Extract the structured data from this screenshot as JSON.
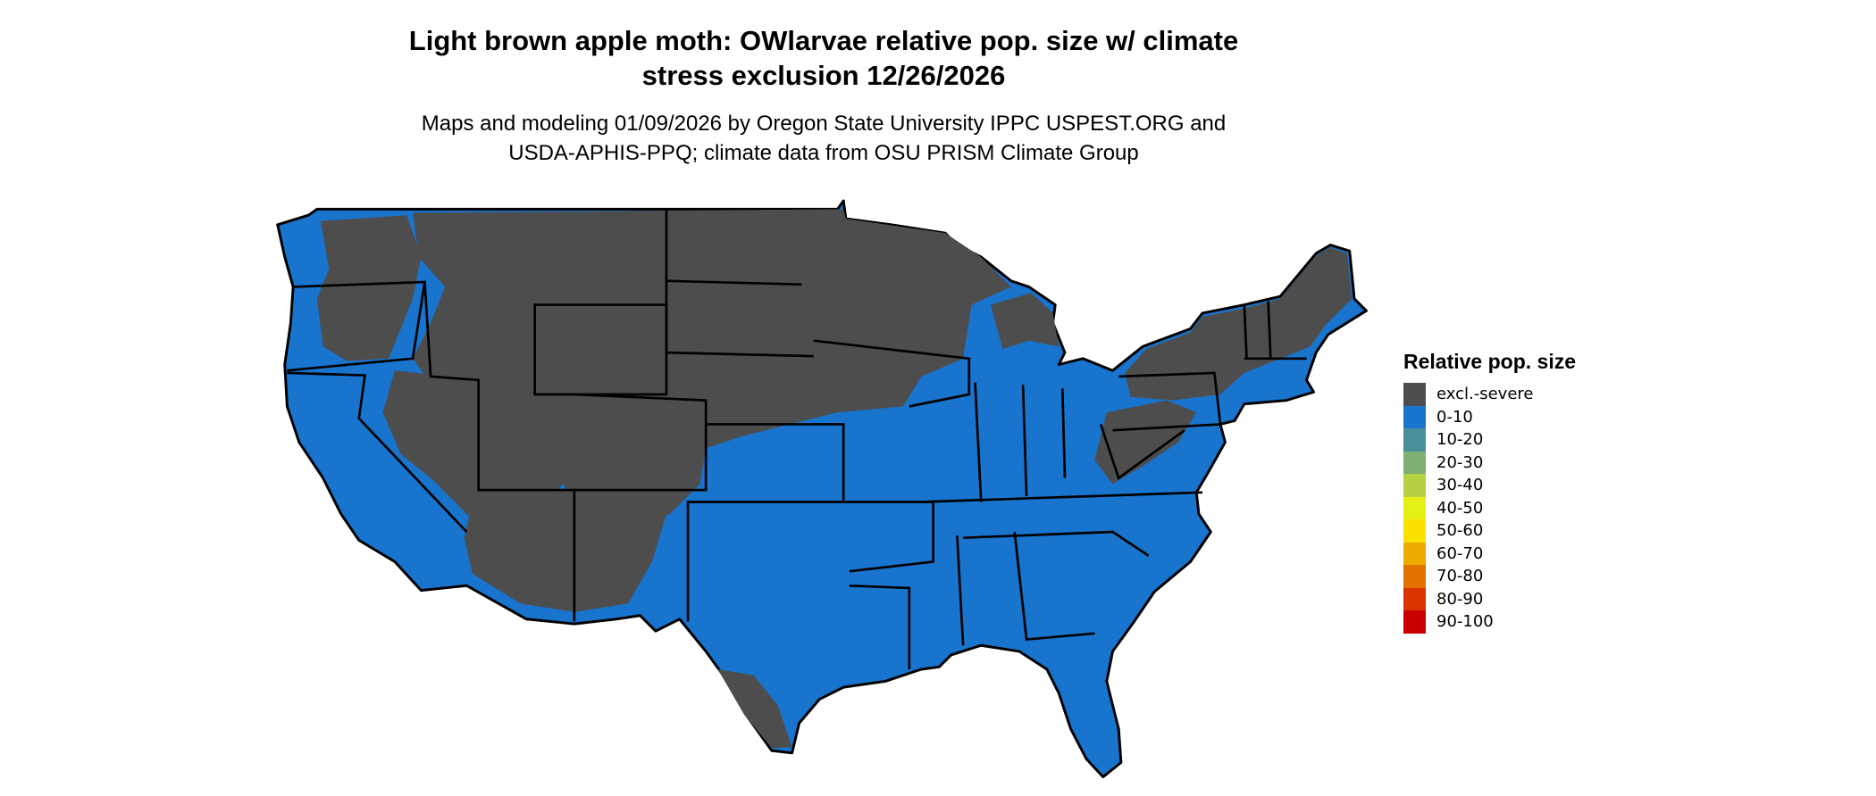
{
  "title": {
    "line1": "Light brown apple moth: OWlarvae relative pop. size w/ climate",
    "line2": "stress exclusion 12/26/2026"
  },
  "subtitle": {
    "line1": "Maps and modeling 01/09/2026 by Oregon State University IPPC USPEST.ORG and",
    "line2": "USDA-APHIS-PPQ; climate data from OSU PRISM Climate Group"
  },
  "map": {
    "region": "Conterminous United States",
    "dominant_class": "0-10",
    "excluded_color": "#4d4d4d",
    "low_color": "#1874cd"
  },
  "legend": {
    "title": "Relative pop. size",
    "items": [
      {
        "label": "excl.-severe",
        "color": "#4d4d4d"
      },
      {
        "label": "0-10",
        "color": "#1874cd"
      },
      {
        "label": "10-20",
        "color": "#4a8f9a"
      },
      {
        "label": "20-30",
        "color": "#7db072"
      },
      {
        "label": "30-40",
        "color": "#b3d143"
      },
      {
        "label": "40-50",
        "color": "#e5f016"
      },
      {
        "label": "50-60",
        "color": "#fae100"
      },
      {
        "label": "60-70",
        "color": "#efaa00"
      },
      {
        "label": "70-80",
        "color": "#e37300"
      },
      {
        "label": "80-90",
        "color": "#da3400"
      },
      {
        "label": "90-100",
        "color": "#cc0000"
      }
    ]
  }
}
